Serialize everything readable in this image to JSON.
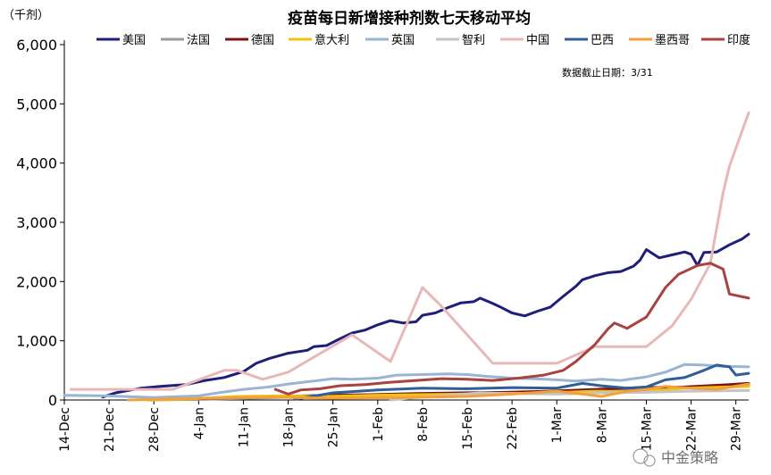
{
  "chart_data": {
    "type": "line",
    "title": "疫苗每日新增接种剂数七天移动平均",
    "unit_label": "（千剂）",
    "note": "数据截止日期：3/31",
    "watermark": "中金策略",
    "ylim": [
      0,
      6000
    ],
    "yticks": [
      0,
      1000,
      2000,
      3000,
      4000,
      5000,
      6000
    ],
    "ytick_labels": [
      "0",
      "1,000",
      "2,000",
      "3,000",
      "4,000",
      "5,000",
      "6,000"
    ],
    "xlim": [
      "2020-12-14",
      "2021-03-31"
    ],
    "xticks": [
      "2020-12-14",
      "2020-12-21",
      "2020-12-28",
      "2021-01-04",
      "2021-01-11",
      "2021-01-18",
      "2021-01-25",
      "2021-02-01",
      "2021-02-08",
      "2021-02-15",
      "2021-02-22",
      "2021-03-01",
      "2021-03-08",
      "2021-03-15",
      "2021-03-22",
      "2021-03-29"
    ],
    "xtick_labels": [
      "14-Dec",
      "21-Dec",
      "28-Dec",
      "4-Jan",
      "11-Jan",
      "18-Jan",
      "25-Jan",
      "1-Feb",
      "8-Feb",
      "15-Feb",
      "22-Feb",
      "1-Mar",
      "8-Mar",
      "15-Mar",
      "22-Mar",
      "29-Mar"
    ],
    "grid": false,
    "legend_position": "top",
    "series": [
      {
        "name": "美国",
        "color": "#1f1f7a",
        "points": [
          [
            "2020-12-20",
            50
          ],
          [
            "2020-12-22",
            120
          ],
          [
            "2020-12-26",
            200
          ],
          [
            "2020-12-29",
            230
          ],
          [
            "2021-01-02",
            260
          ],
          [
            "2021-01-05",
            330
          ],
          [
            "2021-01-08",
            380
          ],
          [
            "2021-01-11",
            480
          ],
          [
            "2021-01-13",
            620
          ],
          [
            "2021-01-15",
            700
          ],
          [
            "2021-01-18",
            790
          ],
          [
            "2021-01-21",
            840
          ],
          [
            "2021-01-22",
            900
          ],
          [
            "2021-01-24",
            920
          ],
          [
            "2021-01-26",
            1030
          ],
          [
            "2021-01-28",
            1130
          ],
          [
            "2021-01-30",
            1180
          ],
          [
            "2021-02-01",
            1270
          ],
          [
            "2021-02-03",
            1340
          ],
          [
            "2021-02-05",
            1300
          ],
          [
            "2021-02-07",
            1320
          ],
          [
            "2021-02-08",
            1430
          ],
          [
            "2021-02-10",
            1470
          ],
          [
            "2021-02-12",
            1560
          ],
          [
            "2021-02-14",
            1640
          ],
          [
            "2021-02-16",
            1660
          ],
          [
            "2021-02-17",
            1720
          ],
          [
            "2021-02-19",
            1630
          ],
          [
            "2021-02-20",
            1580
          ],
          [
            "2021-02-22",
            1470
          ],
          [
            "2021-02-24",
            1420
          ],
          [
            "2021-02-26",
            1500
          ],
          [
            "2021-02-28",
            1570
          ],
          [
            "2021-03-02",
            1750
          ],
          [
            "2021-03-04",
            1920
          ],
          [
            "2021-03-05",
            2030
          ],
          [
            "2021-03-07",
            2100
          ],
          [
            "2021-03-09",
            2150
          ],
          [
            "2021-03-11",
            2170
          ],
          [
            "2021-03-13",
            2260
          ],
          [
            "2021-03-14",
            2360
          ],
          [
            "2021-03-15",
            2540
          ],
          [
            "2021-03-17",
            2400
          ],
          [
            "2021-03-19",
            2450
          ],
          [
            "2021-03-21",
            2500
          ],
          [
            "2021-03-22",
            2460
          ],
          [
            "2021-03-23",
            2270
          ],
          [
            "2021-03-24",
            2490
          ],
          [
            "2021-03-26",
            2500
          ],
          [
            "2021-03-27",
            2560
          ],
          [
            "2021-03-28",
            2620
          ],
          [
            "2021-03-30",
            2720
          ],
          [
            "2021-03-31",
            2800
          ]
        ]
      },
      {
        "name": "法国",
        "color": "#9a9a9a",
        "points": [
          [
            "2020-12-27",
            0
          ],
          [
            "2021-01-05",
            10
          ],
          [
            "2021-01-12",
            30
          ],
          [
            "2021-01-19",
            50
          ],
          [
            "2021-01-26",
            80
          ],
          [
            "2021-02-02",
            90
          ],
          [
            "2021-02-09",
            100
          ],
          [
            "2021-02-16",
            110
          ],
          [
            "2021-02-23",
            120
          ],
          [
            "2021-03-02",
            150
          ],
          [
            "2021-03-09",
            170
          ],
          [
            "2021-03-16",
            190
          ],
          [
            "2021-03-23",
            220
          ],
          [
            "2021-03-31",
            250
          ]
        ]
      },
      {
        "name": "德国",
        "color": "#7a1416",
        "points": [
          [
            "2020-12-27",
            10
          ],
          [
            "2021-01-03",
            20
          ],
          [
            "2021-01-10",
            40
          ],
          [
            "2021-01-17",
            60
          ],
          [
            "2021-01-24",
            80
          ],
          [
            "2021-01-31",
            90
          ],
          [
            "2021-02-07",
            110
          ],
          [
            "2021-02-14",
            120
          ],
          [
            "2021-02-21",
            130
          ],
          [
            "2021-02-28",
            150
          ],
          [
            "2021-03-07",
            180
          ],
          [
            "2021-03-14",
            210
          ],
          [
            "2021-03-21",
            220
          ],
          [
            "2021-03-28",
            260
          ],
          [
            "2021-03-31",
            280
          ]
        ]
      },
      {
        "name": "意大利",
        "color": "#f2c20e",
        "points": [
          [
            "2020-12-27",
            0
          ],
          [
            "2021-01-03",
            20
          ],
          [
            "2021-01-10",
            60
          ],
          [
            "2021-01-17",
            70
          ],
          [
            "2021-01-24",
            60
          ],
          [
            "2021-01-31",
            80
          ],
          [
            "2021-02-07",
            90
          ],
          [
            "2021-02-14",
            100
          ],
          [
            "2021-02-21",
            110
          ],
          [
            "2021-02-28",
            120
          ],
          [
            "2021-03-07",
            150
          ],
          [
            "2021-03-14",
            140
          ],
          [
            "2021-03-21",
            200
          ],
          [
            "2021-03-31",
            230
          ]
        ]
      },
      {
        "name": "英国",
        "color": "#9ab4d2",
        "points": [
          [
            "2020-12-14",
            80
          ],
          [
            "2020-12-21",
            70
          ],
          [
            "2020-12-28",
            40
          ],
          [
            "2021-01-04",
            70
          ],
          [
            "2021-01-07",
            120
          ],
          [
            "2021-01-11",
            180
          ],
          [
            "2021-01-15",
            220
          ],
          [
            "2021-01-18",
            270
          ],
          [
            "2021-01-22",
            320
          ],
          [
            "2021-01-25",
            360
          ],
          [
            "2021-01-28",
            350
          ],
          [
            "2021-02-01",
            370
          ],
          [
            "2021-02-04",
            420
          ],
          [
            "2021-02-08",
            430
          ],
          [
            "2021-02-12",
            440
          ],
          [
            "2021-02-15",
            430
          ],
          [
            "2021-02-18",
            400
          ],
          [
            "2021-02-22",
            370
          ],
          [
            "2021-02-25",
            360
          ],
          [
            "2021-03-01",
            340
          ],
          [
            "2021-03-04",
            320
          ],
          [
            "2021-03-08",
            350
          ],
          [
            "2021-03-11",
            330
          ],
          [
            "2021-03-15",
            390
          ],
          [
            "2021-03-18",
            470
          ],
          [
            "2021-03-21",
            600
          ],
          [
            "2021-03-24",
            590
          ],
          [
            "2021-03-27",
            570
          ],
          [
            "2021-03-31",
            560
          ]
        ]
      },
      {
        "name": "智利",
        "color": "#c4c4c4",
        "points": [
          [
            "2021-02-03",
            0
          ],
          [
            "2021-02-07",
            40
          ],
          [
            "2021-02-12",
            80
          ],
          [
            "2021-02-17",
            120
          ],
          [
            "2021-02-22",
            110
          ],
          [
            "2021-03-01",
            100
          ],
          [
            "2021-03-08",
            120
          ],
          [
            "2021-03-15",
            130
          ],
          [
            "2021-03-22",
            150
          ],
          [
            "2021-03-31",
            160
          ]
        ]
      },
      {
        "name": "中国",
        "color": "#e8b8b8",
        "points": [
          [
            "2020-12-15",
            180
          ],
          [
            "2020-12-31",
            180
          ],
          [
            "2021-01-08",
            500
          ],
          [
            "2021-01-10",
            500
          ],
          [
            "2021-01-14",
            350
          ],
          [
            "2021-01-18",
            470
          ],
          [
            "2021-01-28",
            1100
          ],
          [
            "2021-02-03",
            650
          ],
          [
            "2021-02-08",
            1900
          ],
          [
            "2021-02-11",
            1580
          ],
          [
            "2021-02-19",
            620
          ],
          [
            "2021-03-01",
            620
          ],
          [
            "2021-03-07",
            900
          ],
          [
            "2021-03-15",
            900
          ],
          [
            "2021-03-19",
            1250
          ],
          [
            "2021-03-22",
            1700
          ],
          [
            "2021-03-25",
            2300
          ],
          [
            "2021-03-27",
            3500
          ],
          [
            "2021-03-28",
            3950
          ],
          [
            "2021-03-31",
            4850
          ]
        ]
      },
      {
        "name": "巴西",
        "color": "#2f5f96",
        "points": [
          [
            "2021-01-19",
            10
          ],
          [
            "2021-01-25",
            120
          ],
          [
            "2021-02-01",
            170
          ],
          [
            "2021-02-08",
            200
          ],
          [
            "2021-02-15",
            190
          ],
          [
            "2021-02-22",
            210
          ],
          [
            "2021-03-01",
            200
          ],
          [
            "2021-03-05",
            280
          ],
          [
            "2021-03-08",
            240
          ],
          [
            "2021-03-12",
            200
          ],
          [
            "2021-03-15",
            220
          ],
          [
            "2021-03-18",
            340
          ],
          [
            "2021-03-21",
            380
          ],
          [
            "2021-03-24",
            500
          ],
          [
            "2021-03-26",
            590
          ],
          [
            "2021-03-28",
            560
          ],
          [
            "2021-03-29",
            420
          ],
          [
            "2021-03-31",
            450
          ]
        ]
      },
      {
        "name": "墨西哥",
        "color": "#f2a03c",
        "points": [
          [
            "2020-12-24",
            0
          ],
          [
            "2021-01-05",
            30
          ],
          [
            "2021-01-15",
            50
          ],
          [
            "2021-01-25",
            30
          ],
          [
            "2021-02-05",
            40
          ],
          [
            "2021-02-15",
            60
          ],
          [
            "2021-02-22",
            100
          ],
          [
            "2021-03-01",
            150
          ],
          [
            "2021-03-05",
            100
          ],
          [
            "2021-03-08",
            60
          ],
          [
            "2021-03-12",
            150
          ],
          [
            "2021-03-15",
            180
          ],
          [
            "2021-03-18",
            230
          ],
          [
            "2021-03-22",
            200
          ],
          [
            "2021-03-26",
            180
          ],
          [
            "2021-03-31",
            270
          ]
        ]
      },
      {
        "name": "印度",
        "color": "#a8433f",
        "points": [
          [
            "2021-01-16",
            180
          ],
          [
            "2021-01-18",
            100
          ],
          [
            "2021-01-20",
            170
          ],
          [
            "2021-01-23",
            190
          ],
          [
            "2021-01-26",
            240
          ],
          [
            "2021-01-30",
            260
          ],
          [
            "2021-02-03",
            300
          ],
          [
            "2021-02-07",
            330
          ],
          [
            "2021-02-11",
            360
          ],
          [
            "2021-02-15",
            350
          ],
          [
            "2021-02-19",
            330
          ],
          [
            "2021-02-23",
            370
          ],
          [
            "2021-02-27",
            420
          ],
          [
            "2021-03-02",
            500
          ],
          [
            "2021-03-04",
            650
          ],
          [
            "2021-03-07",
            940
          ],
          [
            "2021-03-09",
            1200
          ],
          [
            "2021-03-10",
            1300
          ],
          [
            "2021-03-12",
            1210
          ],
          [
            "2021-03-15",
            1400
          ],
          [
            "2021-03-18",
            1900
          ],
          [
            "2021-03-20",
            2120
          ],
          [
            "2021-03-23",
            2270
          ],
          [
            "2021-03-25",
            2310
          ],
          [
            "2021-03-27",
            2210
          ],
          [
            "2021-03-28",
            1790
          ],
          [
            "2021-03-31",
            1720
          ]
        ]
      }
    ]
  }
}
